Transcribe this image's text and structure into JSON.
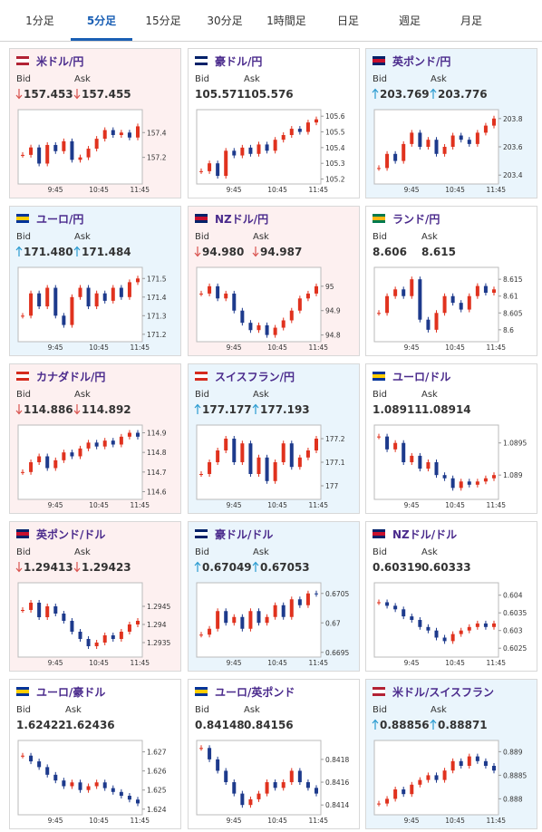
{
  "tabs": [
    "1分足",
    "5分足",
    "15分足",
    "30分足",
    "1時間足",
    "日足",
    "週足",
    "月足"
  ],
  "active_tab": 1,
  "bid_label": "Bid",
  "ask_label": "Ask",
  "x_labels": [
    "9:45",
    "10:45",
    "11:45"
  ],
  "cards": [
    {
      "name": "米ドル/円",
      "bid": "157.453",
      "ask": "157.455",
      "trend": "down",
      "chart": {
        "ylim": [
          157.0,
          157.57
        ],
        "yticks": [
          157.4,
          157.2
        ],
        "values": [
          157.22,
          157.28,
          157.15,
          157.3,
          157.25,
          157.33,
          157.18,
          157.2,
          157.27,
          157.35,
          157.42,
          157.38,
          157.4,
          157.36,
          157.45
        ]
      }
    },
    {
      "name": "豪ドル/円",
      "bid": "105.571",
      "ask": "105.576",
      "trend": "none",
      "chart": {
        "ylim": [
          105.18,
          105.63
        ],
        "yticks": [
          105.6,
          105.5,
          105.4,
          105.3,
          105.2
        ],
        "values": [
          105.25,
          105.3,
          105.22,
          105.38,
          105.35,
          105.4,
          105.36,
          105.42,
          105.38,
          105.45,
          105.48,
          105.52,
          105.5,
          105.56,
          105.58
        ]
      }
    },
    {
      "name": "英ポンド/円",
      "bid": "203.769",
      "ask": "203.776",
      "trend": "up",
      "chart": {
        "ylim": [
          203.35,
          203.85
        ],
        "yticks": [
          203.8,
          203.6,
          203.4
        ],
        "values": [
          203.45,
          203.55,
          203.5,
          203.62,
          203.7,
          203.6,
          203.65,
          203.55,
          203.6,
          203.68,
          203.65,
          203.62,
          203.7,
          203.75,
          203.8
        ]
      }
    },
    {
      "name": "ユーロ/円",
      "bid": "171.480",
      "ask": "171.484",
      "trend": "up",
      "chart": {
        "ylim": [
          171.17,
          171.55
        ],
        "yticks": [
          171.5,
          171.4,
          171.3,
          171.2
        ],
        "values": [
          171.3,
          171.42,
          171.35,
          171.45,
          171.3,
          171.25,
          171.4,
          171.45,
          171.35,
          171.42,
          171.38,
          171.45,
          171.4,
          171.48,
          171.5
        ]
      }
    },
    {
      "name": "NZドル/円",
      "bid": "94.980",
      "ask": "94.987",
      "trend": "down",
      "chart": {
        "ylim": [
          94.78,
          95.07
        ],
        "yticks": [
          95,
          94.9,
          94.8
        ],
        "values": [
          94.97,
          95.0,
          94.95,
          94.97,
          94.9,
          94.85,
          94.82,
          94.84,
          94.8,
          94.83,
          94.86,
          94.9,
          94.95,
          94.97,
          95.0
        ]
      }
    },
    {
      "name": "ランド/円",
      "bid": "8.606",
      "ask": "8.615",
      "trend": "none",
      "chart": {
        "ylim": [
          8.597,
          8.618
        ],
        "yticks": [
          8.615,
          8.61,
          8.605,
          8.6
        ],
        "values": [
          8.605,
          8.61,
          8.612,
          8.61,
          8.615,
          8.603,
          8.6,
          8.605,
          8.61,
          8.608,
          8.606,
          8.61,
          8.613,
          8.611,
          8.612
        ]
      }
    },
    {
      "name": "カナダドル/円",
      "bid": "114.886",
      "ask": "114.892",
      "trend": "down",
      "chart": {
        "ylim": [
          114.57,
          114.93
        ],
        "yticks": [
          114.9,
          114.8,
          114.7,
          114.6
        ],
        "values": [
          114.7,
          114.75,
          114.78,
          114.72,
          114.76,
          114.8,
          114.78,
          114.82,
          114.85,
          114.83,
          114.86,
          114.84,
          114.88,
          114.9,
          114.88
        ]
      }
    },
    {
      "name": "スイスフラン/円",
      "bid": "177.177",
      "ask": "177.193",
      "trend": "up",
      "chart": {
        "ylim": [
          176.95,
          177.25
        ],
        "yticks": [
          177.2,
          177.1,
          177
        ],
        "values": [
          177.05,
          177.1,
          177.15,
          177.2,
          177.1,
          177.18,
          177.05,
          177.12,
          177.02,
          177.1,
          177.18,
          177.08,
          177.12,
          177.15,
          177.2
        ]
      }
    },
    {
      "name": "ユーロ/ドル",
      "bid": "1.08911",
      "ask": "1.08914",
      "trend": "none",
      "chart": {
        "ylim": [
          1.08865,
          1.08975
        ],
        "yticks": [
          1.0895,
          1.089
        ],
        "values": [
          1.0896,
          1.0894,
          1.0895,
          1.0892,
          1.0893,
          1.0891,
          1.0892,
          1.089,
          1.08895,
          1.0888,
          1.0889,
          1.08885,
          1.0889,
          1.08895,
          1.089
        ]
      }
    },
    {
      "name": "英ポンド/ドル",
      "bid": "1.29413",
      "ask": "1.29423",
      "trend": "down",
      "chart": {
        "ylim": [
          1.29315,
          1.2951
        ],
        "yticks": [
          1.2945,
          1.294,
          1.2935
        ],
        "values": [
          1.2944,
          1.2946,
          1.2942,
          1.2945,
          1.2943,
          1.2941,
          1.2938,
          1.2936,
          1.2934,
          1.2935,
          1.2937,
          1.2936,
          1.2938,
          1.294,
          1.2941
        ]
      }
    },
    {
      "name": "豪ドル/ドル",
      "bid": "0.67049",
      "ask": "0.67053",
      "trend": "up",
      "chart": {
        "ylim": [
          0.66945,
          0.67065
        ],
        "yticks": [
          0.6705,
          0.67,
          0.6695
        ],
        "values": [
          0.6698,
          0.6699,
          0.6702,
          0.67,
          0.6701,
          0.6699,
          0.6702,
          0.67,
          0.6701,
          0.6703,
          0.6701,
          0.6704,
          0.6703,
          0.6705,
          0.67049
        ]
      }
    },
    {
      "name": "NZドル/ドル",
      "bid": "0.60319",
      "ask": "0.60333",
      "trend": "none",
      "chart": {
        "ylim": [
          0.6023,
          0.6043
        ],
        "yticks": [
          0.604,
          0.6035,
          0.603,
          0.6025
        ],
        "values": [
          0.6038,
          0.6037,
          0.6036,
          0.6034,
          0.6033,
          0.6031,
          0.603,
          0.6028,
          0.6027,
          0.6029,
          0.603,
          0.6031,
          0.6032,
          0.6031,
          0.6032
        ]
      }
    },
    {
      "name": "ユーロ/豪ドル",
      "bid": "1.62422",
      "ask": "1.62436",
      "trend": "none",
      "chart": {
        "ylim": [
          1.6238,
          1.6275
        ],
        "yticks": [
          1.627,
          1.626,
          1.625,
          1.624
        ],
        "values": [
          1.6268,
          1.6265,
          1.6262,
          1.6258,
          1.6255,
          1.6252,
          1.6254,
          1.625,
          1.6252,
          1.6254,
          1.6251,
          1.6249,
          1.6247,
          1.6245,
          1.6243
        ]
      }
    },
    {
      "name": "ユーロ/英ポンド",
      "bid": "0.84148",
      "ask": "0.84156",
      "trend": "none",
      "chart": {
        "ylim": [
          0.84133,
          0.84195
        ],
        "yticks": [
          0.8418,
          0.8416,
          0.8414
        ],
        "values": [
          0.8419,
          0.8418,
          0.8417,
          0.8416,
          0.8415,
          0.8414,
          0.84145,
          0.8415,
          0.8416,
          0.84155,
          0.8416,
          0.8417,
          0.8416,
          0.84155,
          0.8415
        ]
      }
    },
    {
      "name": "米ドル/スイスフラン",
      "bid": "0.88856",
      "ask": "0.88871",
      "trend": "up",
      "chart": {
        "ylim": [
          0.8877,
          0.8892
        ],
        "yticks": [
          0.889,
          0.8885,
          0.888
        ],
        "values": [
          0.8879,
          0.888,
          0.8882,
          0.8881,
          0.8883,
          0.8884,
          0.8885,
          0.8884,
          0.8886,
          0.8888,
          0.8887,
          0.8889,
          0.8888,
          0.8887,
          0.8886
        ]
      }
    }
  ]
}
